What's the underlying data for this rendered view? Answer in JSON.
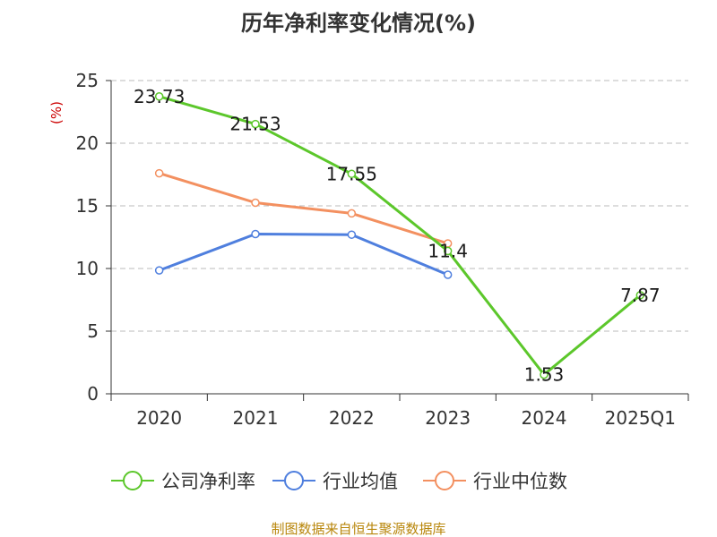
{
  "chart_data": {
    "type": "line",
    "title": "历年净利率变化情况(%)",
    "ylabel": "(%)",
    "xlabel": "",
    "categories": [
      "2020",
      "2021",
      "2022",
      "2023",
      "2024",
      "2025Q1"
    ],
    "ylim": [
      0,
      25
    ],
    "yticks": [
      0,
      5,
      10,
      15,
      20,
      25
    ],
    "grid": true,
    "legend_position": "bottom",
    "series": [
      {
        "name": "公司净利率",
        "color": "#5cc72b",
        "values": [
          23.73,
          21.53,
          17.55,
          11.4,
          1.53,
          7.87
        ],
        "labels": [
          "23.73",
          "21.53",
          "17.55",
          "11.4",
          "1.53",
          "7.87"
        ]
      },
      {
        "name": "行业均值",
        "color": "#4f7fde",
        "values": [
          9.85,
          12.75,
          12.7,
          9.5,
          null,
          null
        ]
      },
      {
        "name": "行业中位数",
        "color": "#f39060",
        "values": [
          17.6,
          15.25,
          14.4,
          12.0,
          null,
          null
        ]
      }
    ]
  },
  "colors": {
    "axis": "#333333",
    "grid": "#bbbbbb",
    "unit": "#cc0000",
    "source": "#b8860b"
  },
  "source": "制图数据来自恒生聚源数据库"
}
